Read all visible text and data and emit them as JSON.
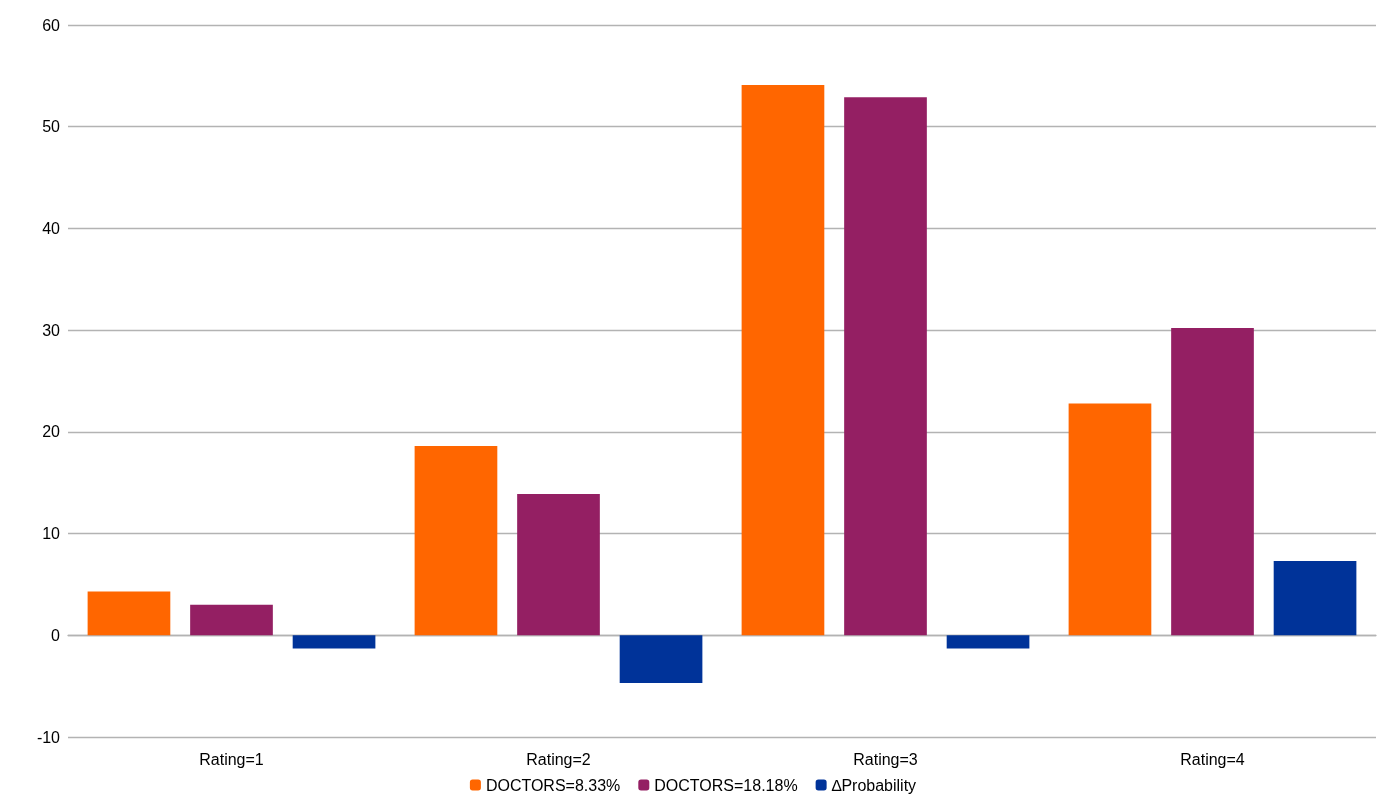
{
  "chart_data": {
    "type": "bar",
    "categories": [
      "Rating=1",
      "Rating=2",
      "Rating=3",
      "Rating=4"
    ],
    "series": [
      {
        "name": "DOCTORS=8.33%",
        "color": "#ff6600",
        "values": [
          4.3,
          18.6,
          54.1,
          22.8
        ]
      },
      {
        "name": "DOCTORS=18.18%",
        "color": "#941f63",
        "values": [
          3.0,
          13.9,
          52.9,
          30.2
        ]
      },
      {
        "name": "∆Probability",
        "color": "#003399",
        "values": [
          -1.3,
          -4.7,
          -1.3,
          7.3
        ]
      }
    ],
    "ylim": [
      -10,
      60
    ],
    "yticks": [
      -10,
      0,
      10,
      20,
      30,
      40,
      50,
      60
    ],
    "grid": "y",
    "legend": "bottom"
  }
}
